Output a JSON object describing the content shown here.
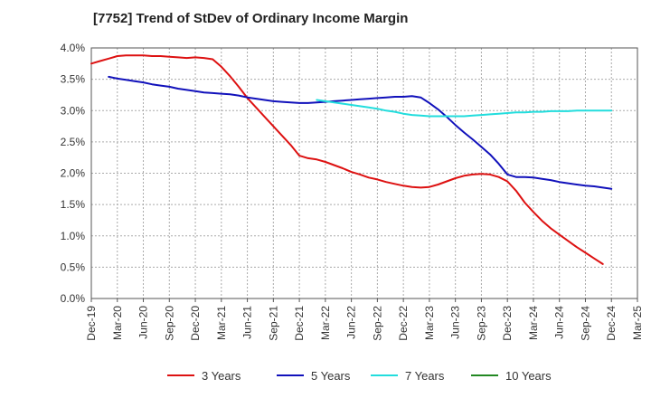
{
  "chart_data": {
    "type": "line",
    "title": "[7752]  Trend of StDev of Ordinary Income Margin",
    "xlabel": "",
    "ylabel": "",
    "x_tick_labels": [
      "Dec-19",
      "Mar-20",
      "Jun-20",
      "Sep-20",
      "Dec-20",
      "Mar-21",
      "Jun-21",
      "Sep-21",
      "Dec-21",
      "Mar-22",
      "Jun-22",
      "Sep-22",
      "Dec-22",
      "Mar-23",
      "Jun-23",
      "Sep-23",
      "Dec-23",
      "Mar-24",
      "Jun-24",
      "Sep-24",
      "Dec-24",
      "Mar-25"
    ],
    "y_tick_labels": [
      "0.0%",
      "0.5%",
      "1.0%",
      "1.5%",
      "2.0%",
      "2.5%",
      "3.0%",
      "3.5%",
      "4.0%"
    ],
    "ylim": [
      0,
      4.0
    ],
    "y_unit": "%",
    "grid": true,
    "legend_position": "bottom",
    "series": [
      {
        "name": "3 Years",
        "color": "#dd1111",
        "points": [
          [
            "Dec-19",
            3.75
          ],
          [
            "Jan-20",
            3.79
          ],
          [
            "Feb-20",
            3.83
          ],
          [
            "Mar-20",
            3.87
          ],
          [
            "Apr-20",
            3.88
          ],
          [
            "May-20",
            3.88
          ],
          [
            "Jun-20",
            3.88
          ],
          [
            "Jul-20",
            3.87
          ],
          [
            "Aug-20",
            3.87
          ],
          [
            "Sep-20",
            3.86
          ],
          [
            "Oct-20",
            3.85
          ],
          [
            "Nov-20",
            3.84
          ],
          [
            "Dec-20",
            3.85
          ],
          [
            "Jan-21",
            3.84
          ],
          [
            "Feb-21",
            3.82
          ],
          [
            "Mar-21",
            3.7
          ],
          [
            "Apr-21",
            3.55
          ],
          [
            "May-21",
            3.38
          ],
          [
            "Jun-21",
            3.2
          ],
          [
            "Jul-21",
            3.05
          ],
          [
            "Aug-21",
            2.9
          ],
          [
            "Sep-21",
            2.75
          ],
          [
            "Oct-21",
            2.6
          ],
          [
            "Nov-21",
            2.45
          ],
          [
            "Dec-21",
            2.28
          ],
          [
            "Jan-22",
            2.24
          ],
          [
            "Feb-22",
            2.22
          ],
          [
            "Mar-22",
            2.18
          ],
          [
            "Apr-22",
            2.13
          ],
          [
            "May-22",
            2.08
          ],
          [
            "Jun-22",
            2.02
          ],
          [
            "Jul-22",
            1.98
          ],
          [
            "Aug-22",
            1.93
          ],
          [
            "Sep-22",
            1.9
          ],
          [
            "Oct-22",
            1.86
          ],
          [
            "Nov-22",
            1.83
          ],
          [
            "Dec-22",
            1.8
          ],
          [
            "Jan-23",
            1.78
          ],
          [
            "Feb-23",
            1.77
          ],
          [
            "Mar-23",
            1.78
          ],
          [
            "Apr-23",
            1.82
          ],
          [
            "May-23",
            1.87
          ],
          [
            "Jun-23",
            1.92
          ],
          [
            "Jul-23",
            1.96
          ],
          [
            "Aug-23",
            1.98
          ],
          [
            "Sep-23",
            1.99
          ],
          [
            "Oct-23",
            1.98
          ],
          [
            "Nov-23",
            1.94
          ],
          [
            "Dec-23",
            1.87
          ],
          [
            "Jan-24",
            1.72
          ],
          [
            "Feb-24",
            1.53
          ],
          [
            "Mar-24",
            1.38
          ],
          [
            "Apr-24",
            1.24
          ],
          [
            "May-24",
            1.12
          ],
          [
            "Jun-24",
            1.02
          ],
          [
            "Jul-24",
            0.92
          ],
          [
            "Aug-24",
            0.82
          ],
          [
            "Sep-24",
            0.73
          ],
          [
            "Oct-24",
            0.64
          ],
          [
            "Nov-24",
            0.55
          ]
        ]
      },
      {
        "name": "5 Years",
        "color": "#1111bb",
        "points": [
          [
            "Feb-20",
            3.54
          ],
          [
            "Mar-20",
            3.51
          ],
          [
            "Apr-20",
            3.49
          ],
          [
            "May-20",
            3.47
          ],
          [
            "Jun-20",
            3.45
          ],
          [
            "Jul-20",
            3.42
          ],
          [
            "Aug-20",
            3.4
          ],
          [
            "Sep-20",
            3.38
          ],
          [
            "Oct-20",
            3.35
          ],
          [
            "Nov-20",
            3.33
          ],
          [
            "Dec-20",
            3.31
          ],
          [
            "Jan-21",
            3.29
          ],
          [
            "Feb-21",
            3.28
          ],
          [
            "Mar-21",
            3.27
          ],
          [
            "Apr-21",
            3.26
          ],
          [
            "May-21",
            3.24
          ],
          [
            "Jun-21",
            3.21
          ],
          [
            "Jul-21",
            3.19
          ],
          [
            "Aug-21",
            3.17
          ],
          [
            "Sep-21",
            3.15
          ],
          [
            "Oct-21",
            3.14
          ],
          [
            "Nov-21",
            3.13
          ],
          [
            "Dec-21",
            3.12
          ],
          [
            "Jan-22",
            3.12
          ],
          [
            "Feb-22",
            3.13
          ],
          [
            "Mar-22",
            3.14
          ],
          [
            "Apr-22",
            3.15
          ],
          [
            "May-22",
            3.16
          ],
          [
            "Jun-22",
            3.17
          ],
          [
            "Jul-22",
            3.18
          ],
          [
            "Aug-22",
            3.19
          ],
          [
            "Sep-22",
            3.2
          ],
          [
            "Oct-22",
            3.21
          ],
          [
            "Nov-22",
            3.22
          ],
          [
            "Dec-22",
            3.22
          ],
          [
            "Jan-23",
            3.23
          ],
          [
            "Feb-23",
            3.21
          ],
          [
            "Mar-23",
            3.12
          ],
          [
            "Apr-23",
            3.02
          ],
          [
            "May-23",
            2.9
          ],
          [
            "Jun-23",
            2.77
          ],
          [
            "Jul-23",
            2.65
          ],
          [
            "Aug-23",
            2.54
          ],
          [
            "Sep-23",
            2.42
          ],
          [
            "Oct-23",
            2.3
          ],
          [
            "Nov-23",
            2.15
          ],
          [
            "Dec-23",
            1.98
          ],
          [
            "Jan-24",
            1.94
          ],
          [
            "Feb-24",
            1.94
          ],
          [
            "Mar-24",
            1.93
          ],
          [
            "Apr-24",
            1.91
          ],
          [
            "May-24",
            1.89
          ],
          [
            "Jun-24",
            1.86
          ],
          [
            "Jul-24",
            1.84
          ],
          [
            "Aug-24",
            1.82
          ],
          [
            "Sep-24",
            1.8
          ],
          [
            "Oct-24",
            1.79
          ],
          [
            "Nov-24",
            1.77
          ],
          [
            "Dec-24",
            1.75
          ]
        ]
      },
      {
        "name": "7 Years",
        "color": "#22dddd",
        "points": [
          [
            "Feb-22",
            3.17
          ],
          [
            "Mar-22",
            3.15
          ],
          [
            "Apr-22",
            3.13
          ],
          [
            "May-22",
            3.11
          ],
          [
            "Jun-22",
            3.09
          ],
          [
            "Jul-22",
            3.07
          ],
          [
            "Aug-22",
            3.05
          ],
          [
            "Sep-22",
            3.03
          ],
          [
            "Oct-22",
            3.0
          ],
          [
            "Nov-22",
            2.98
          ],
          [
            "Dec-22",
            2.95
          ],
          [
            "Jan-23",
            2.93
          ],
          [
            "Feb-23",
            2.92
          ],
          [
            "Mar-23",
            2.91
          ],
          [
            "Apr-23",
            2.91
          ],
          [
            "May-23",
            2.91
          ],
          [
            "Jun-23",
            2.91
          ],
          [
            "Jul-23",
            2.91
          ],
          [
            "Aug-23",
            2.92
          ],
          [
            "Sep-23",
            2.93
          ],
          [
            "Oct-23",
            2.94
          ],
          [
            "Nov-23",
            2.95
          ],
          [
            "Dec-23",
            2.96
          ],
          [
            "Jan-24",
            2.97
          ],
          [
            "Feb-24",
            2.97
          ],
          [
            "Mar-24",
            2.98
          ],
          [
            "Apr-24",
            2.98
          ],
          [
            "May-24",
            2.99
          ],
          [
            "Jun-24",
            2.99
          ],
          [
            "Jul-24",
            2.99
          ],
          [
            "Aug-24",
            3.0
          ],
          [
            "Sep-24",
            3.0
          ],
          [
            "Oct-24",
            3.0
          ],
          [
            "Nov-24",
            3.0
          ],
          [
            "Dec-24",
            3.0
          ]
        ]
      },
      {
        "name": "10 Years",
        "color": "#228822",
        "points": []
      }
    ]
  }
}
